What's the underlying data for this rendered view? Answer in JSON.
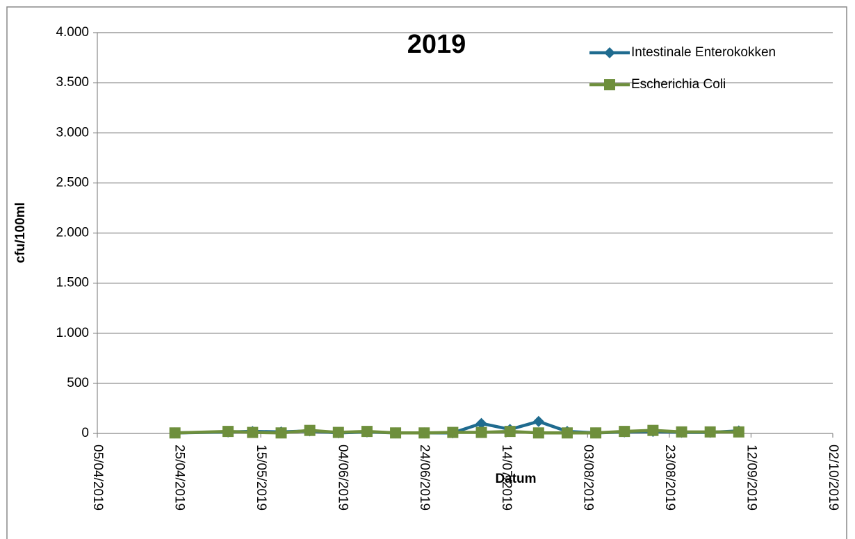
{
  "chart_data": {
    "type": "line",
    "title": "2019",
    "x_label": "Datum",
    "y_label": "cfu/100ml",
    "x": [
      "2019-04-24",
      "2019-05-07",
      "2019-05-13",
      "2019-05-20",
      "2019-05-27",
      "2019-06-03",
      "2019-06-10",
      "2019-06-17",
      "2019-06-24",
      "2019-07-01",
      "2019-07-08",
      "2019-07-15",
      "2019-07-22",
      "2019-07-29",
      "2019-08-05",
      "2019-08-12",
      "2019-08-19",
      "2019-08-26",
      "2019-09-02",
      "2019-09-09"
    ],
    "series": [
      {
        "name": "Intestinale Enterokokken",
        "color": "#1f6b8f",
        "marker": "diamond",
        "values": [
          5,
          15,
          20,
          15,
          25,
          5,
          15,
          5,
          5,
          5,
          100,
          40,
          120,
          20,
          5,
          15,
          20,
          10,
          10,
          25
        ]
      },
      {
        "name": "Escherichia Coli",
        "color": "#6e8f3c",
        "marker": "square",
        "values": [
          5,
          20,
          10,
          5,
          30,
          10,
          20,
          5,
          5,
          10,
          10,
          20,
          5,
          5,
          5,
          20,
          30,
          15,
          15,
          15
        ]
      }
    ],
    "xlim": [
      "2019-04-05",
      "2019-10-02"
    ],
    "xticks": [
      {
        "value": "2019-04-05",
        "label": "05/04/2019"
      },
      {
        "value": "2019-04-25",
        "label": "25/04/2019"
      },
      {
        "value": "2019-05-15",
        "label": "15/05/2019"
      },
      {
        "value": "2019-06-04",
        "label": "04/06/2019"
      },
      {
        "value": "2019-06-24",
        "label": "24/06/2019"
      },
      {
        "value": "2019-07-14",
        "label": "14/07/2019"
      },
      {
        "value": "2019-08-03",
        "label": "03/08/2019"
      },
      {
        "value": "2019-08-23",
        "label": "23/08/2019"
      },
      {
        "value": "2019-09-12",
        "label": "12/09/2019"
      },
      {
        "value": "2019-10-02",
        "label": "02/10/2019"
      }
    ],
    "ylim": [
      0,
      4000
    ],
    "yticks": [
      0,
      500,
      {
        "value": 1000,
        "label": "1.000"
      },
      {
        "value": 1500,
        "label": "1.500"
      },
      {
        "value": 2000,
        "label": "2.000"
      },
      {
        "value": 2500,
        "label": "2.500"
      },
      {
        "value": 3000,
        "label": "3.000"
      },
      {
        "value": 3500,
        "label": "3.500"
      },
      {
        "value": 4000,
        "label": "4.000"
      }
    ],
    "grid": true,
    "legend": "top-right"
  }
}
